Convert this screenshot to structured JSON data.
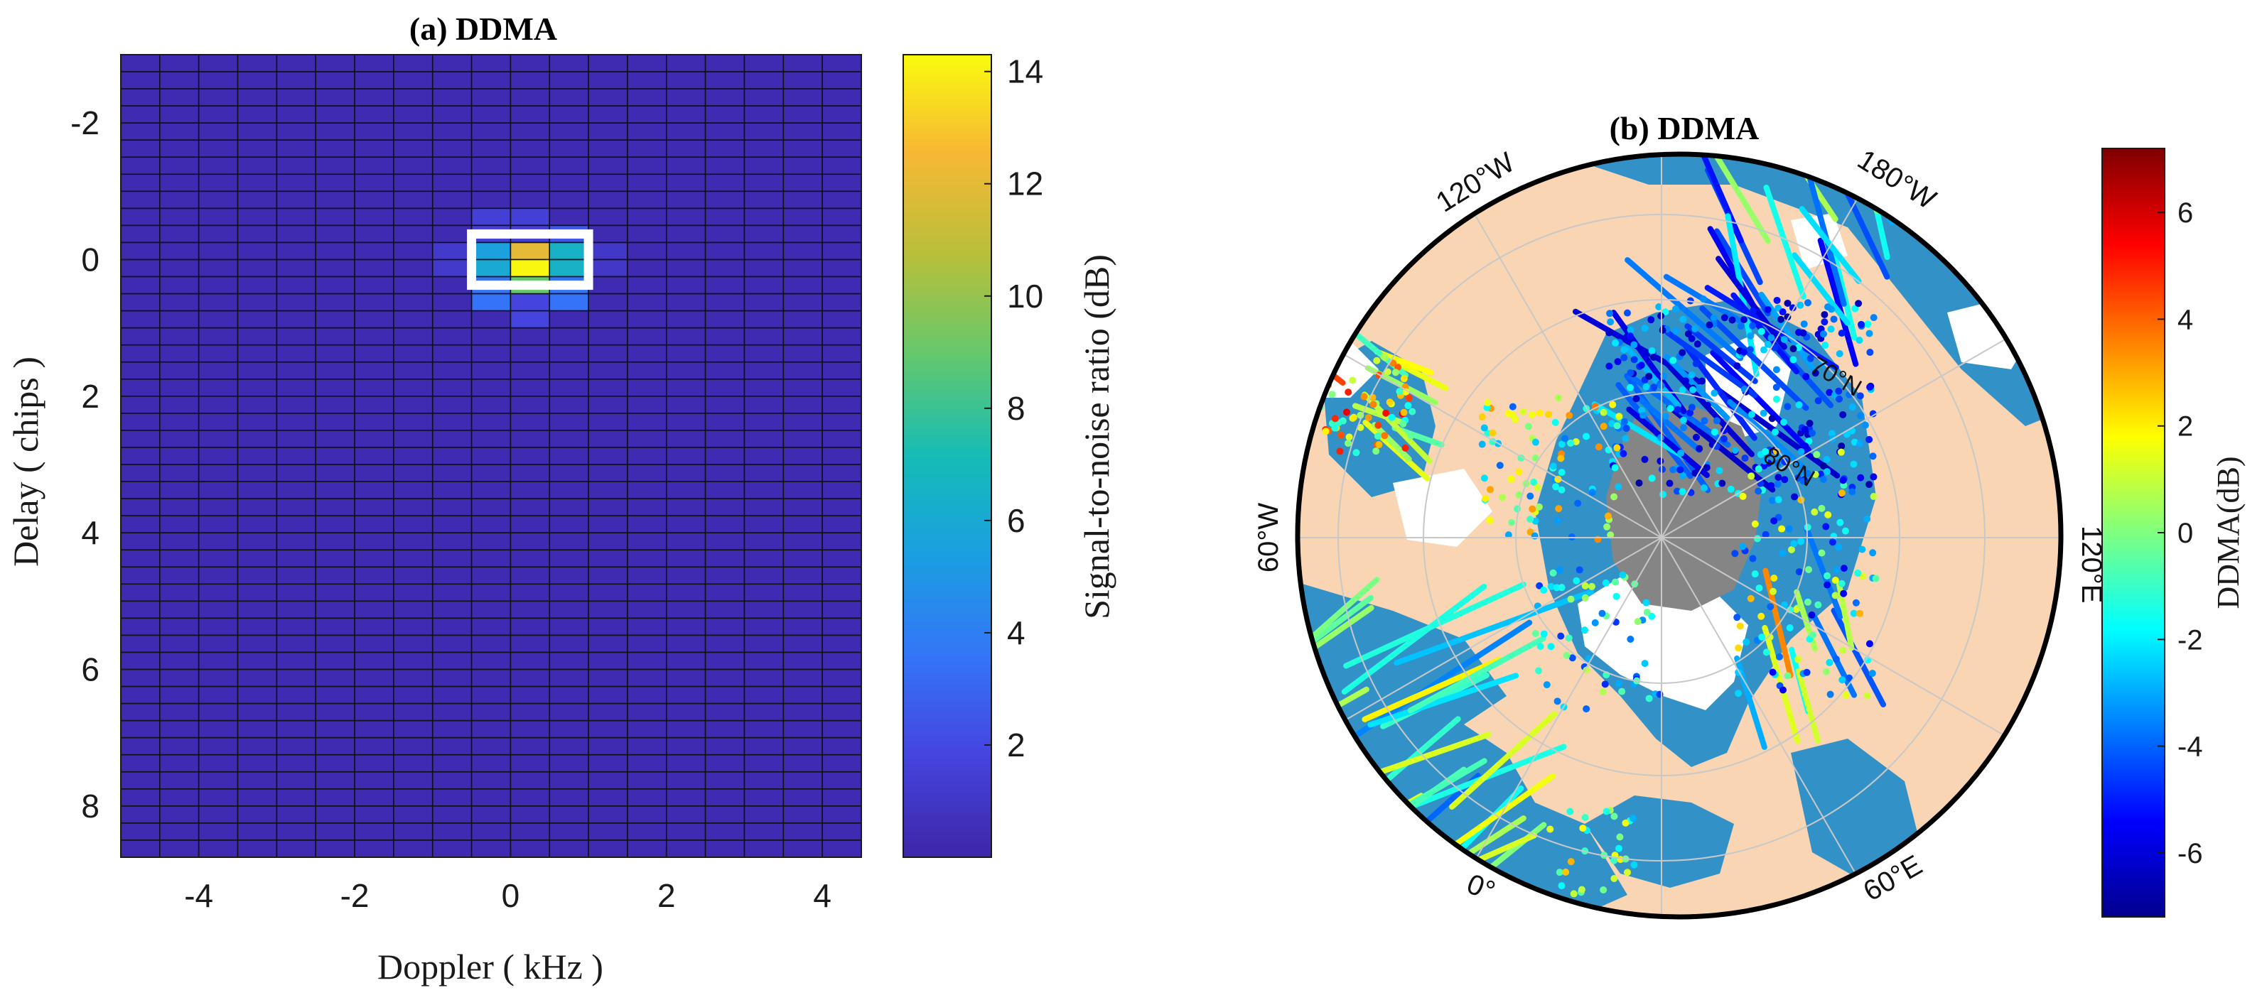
{
  "chart_data": [
    {
      "type": "heatmap",
      "title": "(a) DDMA",
      "xlabel": "Doppler ( kHz )",
      "ylabel": "Delay ( chips )",
      "x_ticks": [
        "-4",
        "-2",
        "0",
        "2",
        "4"
      ],
      "y_ticks": [
        "-2",
        "0",
        "2",
        "4",
        "6",
        "8"
      ],
      "xlim": [
        -5,
        4.5
      ],
      "ylim": [
        -3,
        8.75
      ],
      "y_reversed": true,
      "n_doppler_bins": 19,
      "n_delay_bins": 47,
      "doppler_step_khz": 0.5,
      "delay_step_chips": 0.25,
      "background_value_db": 0.3,
      "peak_cells": [
        {
          "doppler": -0.25,
          "delay": -0.25,
          "value": 3.0
        },
        {
          "doppler": 0.25,
          "delay": -0.25,
          "value": 3.5
        },
        {
          "doppler": 0.75,
          "delay": -0.25,
          "value": 2.5
        },
        {
          "doppler": -0.25,
          "delay": 0,
          "value": 5.5
        },
        {
          "doppler": 0.25,
          "delay": 0,
          "value": 12.0
        },
        {
          "doppler": 0.75,
          "delay": 0,
          "value": 6.5
        },
        {
          "doppler": -0.25,
          "delay": 0.25,
          "value": 6.0
        },
        {
          "doppler": 0.25,
          "delay": 0.25,
          "value": 14.2
        },
        {
          "doppler": 0.75,
          "delay": 0.25,
          "value": 6.5
        },
        {
          "doppler": -0.25,
          "delay": 0.5,
          "value": 3.5
        },
        {
          "doppler": 0.25,
          "delay": 0.5,
          "value": 9.0
        },
        {
          "doppler": 0.75,
          "delay": 0.5,
          "value": 3.5
        },
        {
          "doppler": -0.75,
          "delay": 0,
          "value": 1.2
        },
        {
          "doppler": 1.25,
          "delay": 0,
          "value": 1.0
        },
        {
          "doppler": 0.25,
          "delay": 0.75,
          "value": 1.8
        },
        {
          "doppler": -0.25,
          "delay": -0.5,
          "value": 1.5
        },
        {
          "doppler": 0.25,
          "delay": -0.5,
          "value": 1.5
        }
      ],
      "highlight_box": {
        "doppler_range": [
          -0.5,
          1.0
        ],
        "delay_range": [
          -0.375,
          0.375
        ],
        "color": "#ffffff"
      },
      "colorbar": {
        "label": "Signal-to-noise ratio (dB)",
        "range": [
          0,
          14.3
        ],
        "ticks": [
          "2",
          "4",
          "6",
          "8",
          "10",
          "12",
          "14"
        ],
        "colormap": "parula"
      }
    },
    {
      "type": "scatter",
      "title": "(b) DDMA",
      "projection": "north polar stereographic",
      "meridian_labels": [
        "120°W",
        "180°W",
        "60°W",
        "120°E",
        "0°",
        "60°E"
      ],
      "parallel_labels": [
        "70°N",
        "80°N"
      ],
      "colors": {
        "land": "#f9d5b3",
        "ocean": "#3292c8",
        "sea_ice": "#858585",
        "missing": "#ffffff",
        "grid": "#bbbbbb"
      },
      "value_range_db": [
        -7.2,
        7.2
      ],
      "colorbar": {
        "label": "DDMA(dB)",
        "range": [
          -7.2,
          7.2
        ],
        "ticks": [
          "6",
          "4",
          "2",
          "0",
          "-2",
          "-4",
          "-6"
        ],
        "colormap": "jet"
      }
    }
  ]
}
